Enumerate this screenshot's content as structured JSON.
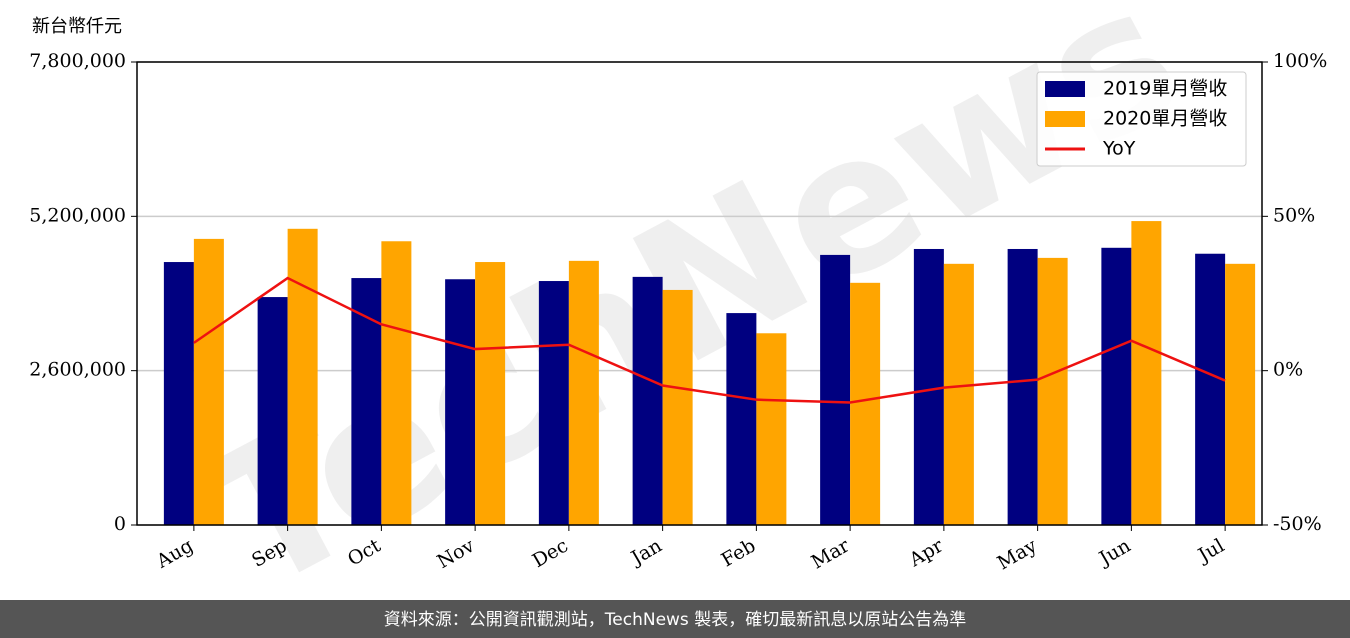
{
  "chart_data": {
    "type": "bar",
    "y_unit_label": "新台幣仟元",
    "watermark": "TechNews",
    "source": "資料來源：公開資訊觀測站，TechNews 製表，確切最新訊息以原站公告為準",
    "categories": [
      "Aug",
      "Sep",
      "Oct",
      "Nov",
      "Dec",
      "Jan",
      "Feb",
      "Mar",
      "Apr",
      "May",
      "Jun",
      "Jul"
    ],
    "series": [
      {
        "name": "2019單月營收",
        "type": "bar",
        "color": "#000080",
        "values": [
          4430000,
          3840000,
          4160000,
          4140000,
          4110000,
          4180000,
          3570000,
          4550000,
          4650000,
          4650000,
          4670000,
          4570000
        ]
      },
      {
        "name": "2020單月營收",
        "type": "bar",
        "color": "#ffa500",
        "values": [
          4820000,
          4990000,
          4780000,
          4430000,
          4450000,
          3960000,
          3230000,
          4080000,
          4400000,
          4500000,
          5120000,
          4400000
        ]
      },
      {
        "name": "YoY",
        "type": "line",
        "axis": "y2",
        "color": "#ee1111",
        "values": [
          9,
          30,
          15,
          7,
          8.4,
          -4.8,
          -9.4,
          -10.3,
          -5.5,
          -2.9,
          9.7,
          -3.2
        ]
      }
    ],
    "ylim": [
      0,
      7800000
    ],
    "yticks": [
      0,
      {
        "value": 2600000,
        "label": "2,600,000"
      },
      {
        "value": 5200000,
        "label": "5,200,000"
      },
      {
        "value": 7800000,
        "label": "7,800,000"
      }
    ],
    "y2lim": [
      -50,
      100
    ],
    "y2ticks": [
      {
        "value": -50,
        "label": "-50%"
      },
      {
        "value": 0,
        "label": "0%"
      },
      {
        "value": 50,
        "label": "50%"
      },
      {
        "value": 100,
        "label": "100%"
      }
    ],
    "grid": true,
    "legend": "upper right"
  }
}
